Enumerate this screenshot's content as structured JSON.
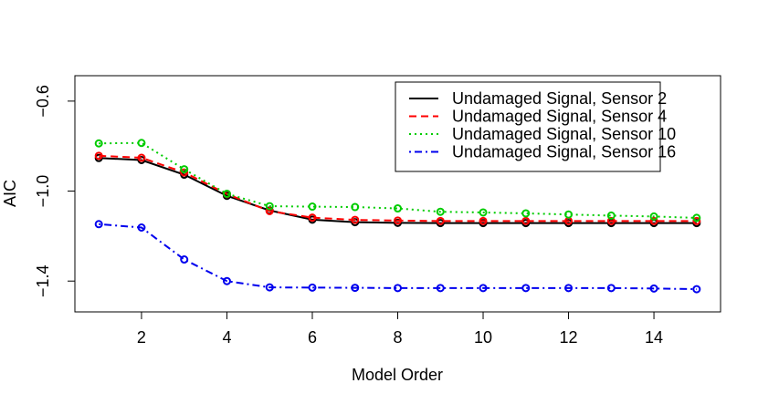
{
  "chart_data": {
    "type": "line",
    "title": "",
    "xlabel": "Model Order",
    "ylabel": "AIC",
    "xlim": [
      0.44,
      15.56
    ],
    "ylim": [
      -1.537,
      -0.487
    ],
    "x_ticks": [
      2,
      4,
      6,
      8,
      10,
      12,
      14
    ],
    "y_ticks": [
      -1.4,
      -1.0,
      -0.6
    ],
    "x_tick_labels": [
      "2",
      "4",
      "6",
      "8",
      "10",
      "12",
      "14"
    ],
    "y_tick_labels": [
      "−1.4",
      "−1.0",
      "−0.6"
    ],
    "grid": false,
    "legend_position": "top-right",
    "x": [
      1,
      2,
      3,
      4,
      5,
      6,
      7,
      8,
      9,
      10,
      11,
      12,
      13,
      14,
      15
    ],
    "series": [
      {
        "name": "Undamaged Signal, Sensor 2",
        "color": "#000000",
        "line_style": "solid",
        "values": [
          -0.853,
          -0.862,
          -0.927,
          -1.021,
          -1.086,
          -1.127,
          -1.138,
          -1.141,
          -1.142,
          -1.142,
          -1.142,
          -1.142,
          -1.142,
          -1.142,
          -1.142
        ]
      },
      {
        "name": "Undamaged Signal, Sensor 4",
        "color": "#ff0000",
        "line_style": "dashed",
        "values": [
          -0.843,
          -0.852,
          -0.917,
          -1.013,
          -1.089,
          -1.118,
          -1.128,
          -1.131,
          -1.133,
          -1.133,
          -1.133,
          -1.133,
          -1.133,
          -1.133,
          -1.133
        ]
      },
      {
        "name": "Undamaged Signal, Sensor 10",
        "color": "#00cc00",
        "line_style": "dotted",
        "values": [
          -0.788,
          -0.786,
          -0.903,
          -1.012,
          -1.067,
          -1.069,
          -1.071,
          -1.077,
          -1.092,
          -1.095,
          -1.099,
          -1.104,
          -1.109,
          -1.113,
          -1.119
        ]
      },
      {
        "name": "Undamaged Signal, Sensor 16",
        "color": "#0000ee",
        "line_style": "dotdash",
        "values": [
          -1.147,
          -1.162,
          -1.304,
          -1.4,
          -1.428,
          -1.429,
          -1.43,
          -1.431,
          -1.431,
          -1.431,
          -1.431,
          -1.431,
          -1.431,
          -1.433,
          -1.436
        ]
      }
    ]
  }
}
